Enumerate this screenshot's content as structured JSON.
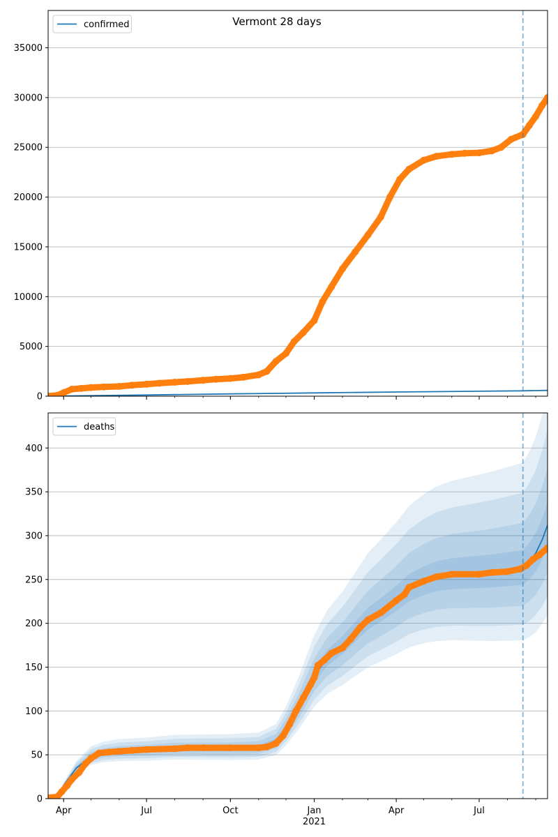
{
  "figure": {
    "title": "Vermont 28 days"
  },
  "chart_data": [
    {
      "type": "line",
      "panel": "top",
      "legend": {
        "labels": [
          "confirmed"
        ],
        "placement": "upper-left"
      },
      "grid": "horizontal",
      "xlabel": "",
      "ylabel": "",
      "x_range": [
        "2020-03-15",
        "2021-09-14"
      ],
      "ylim": [
        0,
        38750
      ],
      "yticks": [
        0,
        5000,
        10000,
        15000,
        20000,
        25000,
        30000,
        35000
      ],
      "xticks": [
        {
          "date": "2020-04-01",
          "label": "Apr"
        },
        {
          "date": "2020-07-01",
          "label": "Jul"
        },
        {
          "date": "2020-10-01",
          "label": "Oct"
        },
        {
          "date": "2021-01-01",
          "label": "Jan",
          "sublabel": "2021"
        },
        {
          "date": "2021-04-01",
          "label": "Apr"
        },
        {
          "date": "2021-07-01",
          "label": "Jul"
        }
      ],
      "forecast_start": "2021-08-18",
      "series": [
        {
          "name": "confirmed",
          "role": "model",
          "color": "#1f77b4",
          "points": [
            [
              "2020-03-15",
              0
            ],
            [
              "2020-07-01",
              120
            ],
            [
              "2020-10-01",
              230
            ],
            [
              "2021-01-01",
              330
            ],
            [
              "2021-04-01",
              420
            ],
            [
              "2021-07-01",
              500
            ],
            [
              "2021-08-18",
              540
            ],
            [
              "2021-09-14",
              580
            ]
          ]
        },
        {
          "role": "observed",
          "color": "#ff7f0e",
          "points": [
            [
              "2020-03-15",
              20
            ],
            [
              "2020-03-25",
              80
            ],
            [
              "2020-04-01",
              350
            ],
            [
              "2020-04-10",
              700
            ],
            [
              "2020-04-20",
              780
            ],
            [
              "2020-05-01",
              870
            ],
            [
              "2020-05-15",
              930
            ],
            [
              "2020-06-01",
              980
            ],
            [
              "2020-06-15",
              1100
            ],
            [
              "2020-07-01",
              1200
            ],
            [
              "2020-07-15",
              1300
            ],
            [
              "2020-08-01",
              1400
            ],
            [
              "2020-08-15",
              1480
            ],
            [
              "2020-09-01",
              1600
            ],
            [
              "2020-09-15",
              1700
            ],
            [
              "2020-10-01",
              1780
            ],
            [
              "2020-10-15",
              1900
            ],
            [
              "2020-11-01",
              2150
            ],
            [
              "2020-11-10",
              2500
            ],
            [
              "2020-11-20",
              3500
            ],
            [
              "2020-12-01",
              4300
            ],
            [
              "2020-12-10",
              5500
            ],
            [
              "2020-12-20",
              6400
            ],
            [
              "2021-01-01",
              7600
            ],
            [
              "2021-01-10",
              9500
            ],
            [
              "2021-01-20",
              11000
            ],
            [
              "2021-02-01",
              12800
            ],
            [
              "2021-02-15",
              14500
            ],
            [
              "2021-03-01",
              16200
            ],
            [
              "2021-03-15",
              18000
            ],
            [
              "2021-03-25",
              20000
            ],
            [
              "2021-04-05",
              21800
            ],
            [
              "2021-04-15",
              22800
            ],
            [
              "2021-05-01",
              23700
            ],
            [
              "2021-05-15",
              24100
            ],
            [
              "2021-06-01",
              24300
            ],
            [
              "2021-06-15",
              24400
            ],
            [
              "2021-07-01",
              24450
            ],
            [
              "2021-07-15",
              24650
            ],
            [
              "2021-07-25",
              25000
            ],
            [
              "2021-08-05",
              25800
            ],
            [
              "2021-08-18",
              26300
            ],
            [
              "2021-08-25",
              27200
            ],
            [
              "2021-09-01",
              28100
            ],
            [
              "2021-09-08",
              29200
            ],
            [
              "2021-09-14",
              30000
            ]
          ]
        }
      ]
    },
    {
      "type": "line",
      "panel": "bottom",
      "legend": {
        "labels": [
          "deaths"
        ],
        "placement": "upper-left"
      },
      "grid": "horizontal",
      "xlabel": "",
      "ylabel": "",
      "x_range": [
        "2020-03-15",
        "2021-09-14"
      ],
      "ylim": [
        0,
        440
      ],
      "yticks": [
        0,
        50,
        100,
        150,
        200,
        250,
        300,
        350,
        400
      ],
      "xticks": [
        {
          "date": "2020-04-01",
          "label": "Apr"
        },
        {
          "date": "2020-07-01",
          "label": "Jul"
        },
        {
          "date": "2020-10-01",
          "label": "Oct"
        },
        {
          "date": "2021-01-01",
          "label": "Jan",
          "sublabel": "2021"
        },
        {
          "date": "2021-04-01",
          "label": "Apr"
        },
        {
          "date": "2021-07-01",
          "label": "Jul"
        }
      ],
      "forecast_start": "2021-08-18",
      "bands": {
        "color": "#1f77b4",
        "widths": [
          0.35,
          0.25,
          0.15,
          0.06
        ],
        "opacity": 0.12
      },
      "series": [
        {
          "name": "deaths",
          "role": "model",
          "color": "#1f77b4",
          "points": [
            [
              "2020-03-15",
              0
            ],
            [
              "2020-03-25",
              2
            ],
            [
              "2020-04-01",
              15
            ],
            [
              "2020-04-15",
              35
            ],
            [
              "2020-05-01",
              48
            ],
            [
              "2020-05-15",
              52
            ],
            [
              "2020-06-01",
              54
            ],
            [
              "2020-07-01",
              55
            ],
            [
              "2020-08-01",
              57
            ],
            [
              "2020-09-01",
              57
            ],
            [
              "2020-10-01",
              57
            ],
            [
              "2020-11-01",
              58
            ],
            [
              "2020-11-20",
              65
            ],
            [
              "2020-12-01",
              80
            ],
            [
              "2020-12-15",
              105
            ],
            [
              "2021-01-01",
              140
            ],
            [
              "2021-01-15",
              160
            ],
            [
              "2021-02-01",
              175
            ],
            [
              "2021-02-15",
              190
            ],
            [
              "2021-03-01",
              205
            ],
            [
              "2021-03-15",
              215
            ],
            [
              "2021-04-01",
              228
            ],
            [
              "2021-04-15",
              240
            ],
            [
              "2021-05-01",
              248
            ],
            [
              "2021-05-15",
              253
            ],
            [
              "2021-06-01",
              256
            ],
            [
              "2021-06-15",
              257
            ],
            [
              "2021-07-01",
              258
            ],
            [
              "2021-07-15",
              259
            ],
            [
              "2021-08-01",
              261
            ],
            [
              "2021-08-18",
              263
            ],
            [
              "2021-08-25",
              270
            ],
            [
              "2021-09-01",
              280
            ],
            [
              "2021-09-08",
              295
            ],
            [
              "2021-09-14",
              312
            ]
          ]
        },
        {
          "role": "observed",
          "color": "#ff7f0e",
          "points": [
            [
              "2020-03-15",
              1
            ],
            [
              "2020-03-25",
              2
            ],
            [
              "2020-03-30",
              8
            ],
            [
              "2020-04-05",
              15
            ],
            [
              "2020-04-10",
              22
            ],
            [
              "2020-04-18",
              30
            ],
            [
              "2020-04-25",
              40
            ],
            [
              "2020-05-01",
              46
            ],
            [
              "2020-05-10",
              52
            ],
            [
              "2020-05-20",
              53
            ],
            [
              "2020-06-01",
              54
            ],
            [
              "2020-06-15",
              55
            ],
            [
              "2020-07-01",
              56
            ],
            [
              "2020-08-01",
              57
            ],
            [
              "2020-08-15",
              58
            ],
            [
              "2020-09-01",
              58
            ],
            [
              "2020-10-01",
              58
            ],
            [
              "2020-11-01",
              58
            ],
            [
              "2020-11-10",
              59
            ],
            [
              "2020-11-20",
              63
            ],
            [
              "2020-11-28",
              72
            ],
            [
              "2020-12-05",
              85
            ],
            [
              "2020-12-12",
              100
            ],
            [
              "2020-12-20",
              115
            ],
            [
              "2020-12-28",
              130
            ],
            [
              "2021-01-01",
              138
            ],
            [
              "2021-01-05",
              152
            ],
            [
              "2021-01-12",
              158
            ],
            [
              "2021-01-20",
              166
            ],
            [
              "2021-02-01",
              172
            ],
            [
              "2021-02-10",
              182
            ],
            [
              "2021-02-20",
              195
            ],
            [
              "2021-03-01",
              204
            ],
            [
              "2021-03-15",
              212
            ],
            [
              "2021-04-01",
              226
            ],
            [
              "2021-04-10",
              233
            ],
            [
              "2021-04-15",
              241
            ],
            [
              "2021-05-01",
              248
            ],
            [
              "2021-05-15",
              253
            ],
            [
              "2021-06-01",
              256
            ],
            [
              "2021-07-01",
              256
            ],
            [
              "2021-07-15",
              258
            ],
            [
              "2021-08-01",
              259
            ],
            [
              "2021-08-15",
              262
            ],
            [
              "2021-08-22",
              266
            ],
            [
              "2021-08-29",
              273
            ],
            [
              "2021-09-05",
              278
            ],
            [
              "2021-09-14",
              286
            ]
          ]
        }
      ]
    }
  ]
}
